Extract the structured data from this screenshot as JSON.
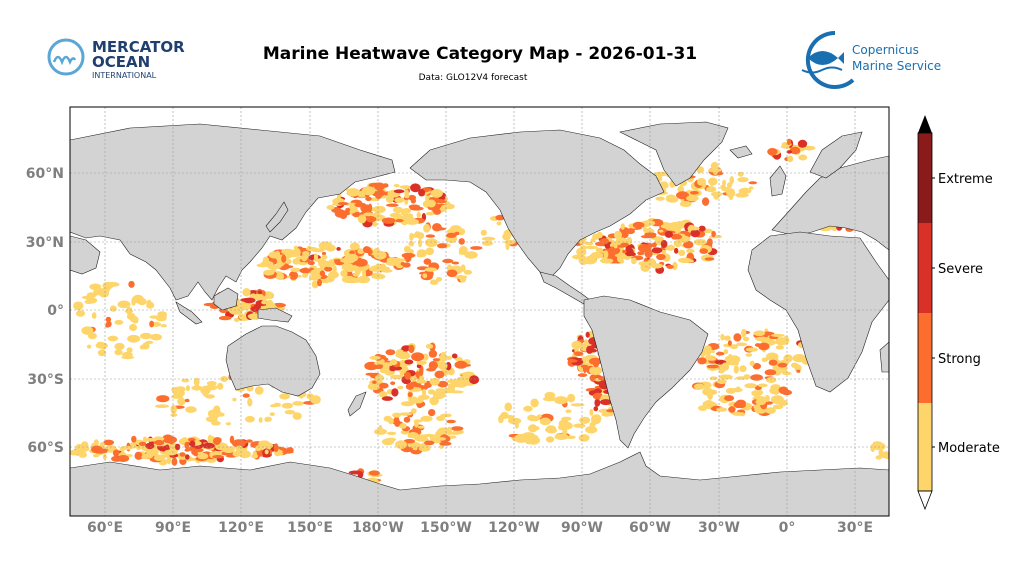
{
  "header": {
    "title": "Marine Heatwave Category Map - 2026-01-31",
    "subtitle": "Data: GLO12V4 forecast"
  },
  "logos": {
    "mercator": {
      "line1": "MERCATOR",
      "line2": "OCEAN",
      "line3": "INTERNATIONAL"
    },
    "copernicus": {
      "line1": "Copernicus",
      "line2": "Marine Service"
    }
  },
  "map": {
    "latitude_labels": [
      "60°N",
      "30°N",
      "0°",
      "30°S",
      "60°S"
    ],
    "longitude_labels": [
      "60°E",
      "90°E",
      "120°E",
      "150°E",
      "180°W",
      "150°W",
      "120°W",
      "90°W",
      "60°W",
      "30°W",
      "0°",
      "30°E"
    ]
  },
  "colorbar": {
    "categories": [
      "Moderate",
      "Strong",
      "Severe",
      "Extreme"
    ],
    "colors": [
      "#fdd56a",
      "#fc6d2e",
      "#d93027",
      "#8b1a1a"
    ],
    "extend_max_color": "#000000",
    "extend_min_color": "#ffffff"
  },
  "colors": {
    "land": "#d3d3d3",
    "ocean": "#ffffff",
    "mercator_blue": "#1f3f6e",
    "copernicus_blue": "#1a6fb0"
  }
}
